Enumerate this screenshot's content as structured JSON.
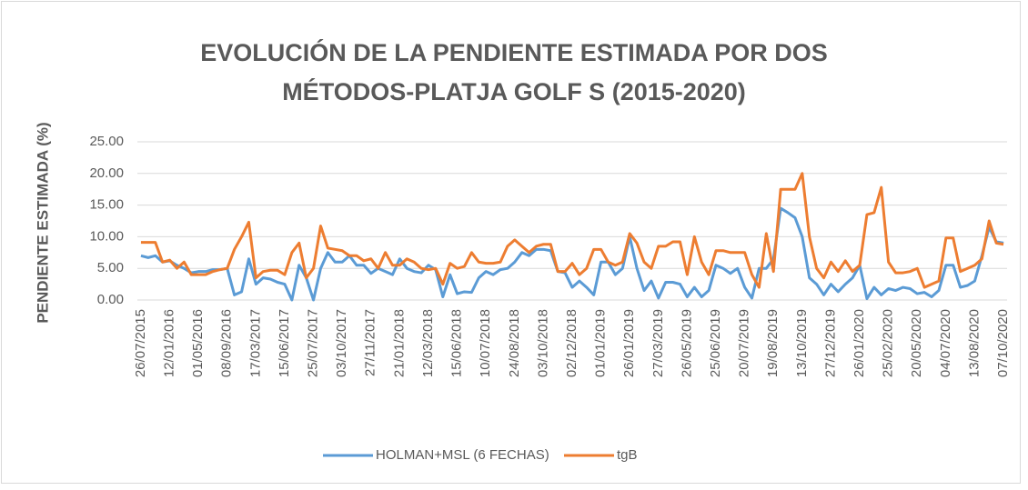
{
  "chart_data": {
    "type": "line",
    "title_lines": [
      "EVOLUCIÓN DE LA PENDIENTE ESTIMADA POR DOS",
      "MÉTODOS-PLATJA GOLF S (2015-2020)"
    ],
    "y_label": "PENDIENTE ESTIMADA (%)",
    "categories": [
      "26/07/2015",
      null,
      null,
      null,
      "12/01/2016",
      null,
      null,
      null,
      "01/05/2016",
      null,
      null,
      null,
      "08/09/2016",
      null,
      null,
      null,
      "17/03/2017",
      null,
      null,
      null,
      "15/06/2017",
      null,
      null,
      null,
      "25/07/2017",
      null,
      null,
      null,
      "03/10/2017",
      null,
      null,
      null,
      "27/11/2017",
      null,
      null,
      null,
      "21/01/2018",
      null,
      null,
      null,
      "12/03/2018",
      null,
      null,
      null,
      "15/06/2018",
      null,
      null,
      null,
      "10/07/2018",
      null,
      null,
      null,
      "24/08/2018",
      null,
      null,
      null,
      "03/10/2018",
      null,
      null,
      null,
      "02/12/2018",
      null,
      null,
      null,
      "01/01/2019",
      null,
      null,
      null,
      "26/01/2019",
      null,
      null,
      null,
      "27/03/2019",
      null,
      null,
      null,
      "26/05/2019",
      null,
      null,
      null,
      "25/06/2019",
      null,
      null,
      null,
      "20/07/2019",
      null,
      null,
      null,
      "19/08/2019",
      null,
      null,
      null,
      "13/10/2019",
      null,
      null,
      null,
      "27/12/2019",
      null,
      null,
      null,
      "26/01/2020",
      null,
      null,
      null,
      "25/02/2020",
      null,
      null,
      null,
      "20/05/2020",
      null,
      null,
      null,
      "04/07/2020",
      null,
      null,
      null,
      "13/08/2020",
      null,
      null,
      null,
      "07/10/2020"
    ],
    "series": [
      {
        "name": "HOLMAN+MSL (6 FECHAS)",
        "color": "#5b9bd5",
        "values": [
          7.0,
          6.7,
          7.0,
          6.0,
          6.2,
          5.5,
          5.0,
          4.3,
          4.5,
          4.5,
          4.8,
          4.8,
          5.0,
          0.8,
          1.3,
          6.5,
          2.5,
          3.5,
          3.3,
          2.8,
          2.5,
          0.0,
          5.5,
          3.5,
          0.0,
          5.0,
          7.5,
          6.0,
          6.0,
          7.0,
          5.5,
          5.5,
          4.2,
          5.0,
          4.5,
          4.0,
          6.5,
          5.0,
          4.5,
          4.3,
          5.5,
          4.8,
          0.5,
          4.0,
          1.0,
          1.3,
          1.2,
          3.5,
          4.5,
          4.0,
          4.8,
          5.0,
          6.0,
          7.5,
          7.0,
          8.0,
          8.0,
          7.8,
          4.5,
          4.3,
          2.0,
          3.0,
          2.0,
          0.8,
          6.0,
          6.0,
          4.0,
          5.0,
          10.0,
          5.0,
          1.5,
          3.0,
          0.3,
          2.8,
          2.8,
          2.5,
          0.5,
          2.0,
          0.5,
          1.5,
          5.5,
          5.0,
          4.2,
          5.0,
          2.0,
          0.3,
          5.0,
          5.0,
          6.5,
          14.5,
          13.8,
          13.0,
          10.0,
          3.5,
          2.5,
          0.8,
          2.5,
          1.3,
          2.5,
          3.5,
          5.5,
          0.2,
          2.0,
          0.8,
          1.8,
          1.5,
          2.0,
          1.8,
          1.0,
          1.2,
          0.5,
          1.5,
          5.5,
          5.5,
          2.0,
          2.3,
          3.0,
          7.0,
          11.5,
          9.2,
          9.0
        ]
      },
      {
        "name": "tgB",
        "color": "#ed7d31",
        "values": [
          9.1,
          9.1,
          9.1,
          6.0,
          6.3,
          5.0,
          6.0,
          4.0,
          4.0,
          4.0,
          4.5,
          4.8,
          5.0,
          8.0,
          10.0,
          12.3,
          3.5,
          4.5,
          4.7,
          4.7,
          4.0,
          7.5,
          9.0,
          3.5,
          5.0,
          11.7,
          8.2,
          8.0,
          7.8,
          7.0,
          7.0,
          6.2,
          6.5,
          5.0,
          7.5,
          5.5,
          5.5,
          6.5,
          6.0,
          5.0,
          4.8,
          5.0,
          2.5,
          5.8,
          5.0,
          5.3,
          7.5,
          6.0,
          5.8,
          5.8,
          6.0,
          8.5,
          9.5,
          8.5,
          7.5,
          8.5,
          8.8,
          8.8,
          4.5,
          4.5,
          5.8,
          4.0,
          5.0,
          8.0,
          8.0,
          6.0,
          5.5,
          6.0,
          10.5,
          9.0,
          6.0,
          5.0,
          8.5,
          8.5,
          9.2,
          9.2,
          4.0,
          10.0,
          6.0,
          4.0,
          7.8,
          7.8,
          7.5,
          7.5,
          7.5,
          4.0,
          2.0,
          10.5,
          4.5,
          17.5,
          17.5,
          17.5,
          20.0,
          10.0,
          5.0,
          3.5,
          6.0,
          4.5,
          6.2,
          4.5,
          5.5,
          13.5,
          13.8,
          17.8,
          6.0,
          4.3,
          4.3,
          4.5,
          5.0,
          2.0,
          2.5,
          3.0,
          9.8,
          9.8,
          4.5,
          5.0,
          5.5,
          6.5,
          12.5,
          9.0,
          8.8
        ]
      }
    ],
    "ylim": [
      0,
      25
    ],
    "yticks": [
      {
        "value": 0,
        "label": "0.00"
      },
      {
        "value": 5,
        "label": "5.00"
      },
      {
        "value": 10,
        "label": "10.00"
      },
      {
        "value": 15,
        "label": "15.00"
      },
      {
        "value": 20,
        "label": "20.00"
      },
      {
        "value": 25,
        "label": "25.00"
      }
    ],
    "grid": true,
    "legend": "bottom"
  }
}
